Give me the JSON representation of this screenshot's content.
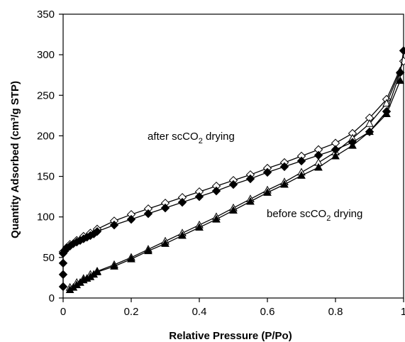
{
  "chart_data": {
    "type": "scatter",
    "title": "",
    "xlabel": "Relative Pressure (P/Po)",
    "ylabel": "Quantity Adsorbed (cm³/g STP)",
    "xlim": [
      0,
      1
    ],
    "ylim": [
      0,
      350
    ],
    "xticks": [
      "0",
      "0.2",
      "0.4",
      "0.6",
      "0.8",
      "1"
    ],
    "yticks": [
      "0",
      "50",
      "100",
      "150",
      "200",
      "250",
      "300",
      "350"
    ],
    "grid": false,
    "legend": "none",
    "annotations": [
      {
        "prefix": "after scCO",
        "sub": "2",
        "suffix": " drying"
      },
      {
        "prefix": "before scCO",
        "sub": "2",
        "suffix": " drying"
      }
    ],
    "series": [
      {
        "label": "after scCO2 drying, adsorption",
        "marker": "filled-diamond",
        "x": [
          0.0,
          0.0,
          0.0,
          0.0,
          0.005,
          0.01,
          0.02,
          0.03,
          0.04,
          0.05,
          0.06,
          0.07,
          0.08,
          0.09,
          0.1,
          0.15,
          0.2,
          0.25,
          0.3,
          0.35,
          0.4,
          0.45,
          0.5,
          0.55,
          0.6,
          0.65,
          0.7,
          0.75,
          0.8,
          0.85,
          0.9,
          0.95,
          0.99,
          1.0
        ],
        "y": [
          14,
          29,
          43,
          55,
          58,
          61,
          64,
          67,
          69,
          71,
          73,
          75,
          77,
          79,
          82,
          90,
          97,
          104,
          111,
          118,
          125,
          132,
          140,
          147,
          155,
          162,
          169,
          176,
          183,
          192,
          205,
          230,
          278,
          305
        ]
      },
      {
        "label": "after scCO2 drying, desorption",
        "marker": "open-diamond",
        "x": [
          1.0,
          0.95,
          0.9,
          0.85,
          0.8,
          0.75,
          0.7,
          0.65,
          0.6,
          0.55,
          0.5,
          0.45,
          0.4,
          0.35,
          0.3,
          0.25,
          0.2,
          0.15,
          0.1,
          0.08,
          0.06,
          0.04,
          0.02,
          0.01,
          0.0
        ],
        "y": [
          292,
          245,
          222,
          203,
          191,
          183,
          175,
          167,
          160,
          152,
          145,
          138,
          131,
          124,
          117,
          110,
          103,
          95,
          85,
          80,
          76,
          71,
          66,
          62,
          57
        ]
      },
      {
        "label": "before scCO2 drying, adsorption",
        "marker": "filled-triangle",
        "x": [
          0.02,
          0.03,
          0.04,
          0.05,
          0.06,
          0.07,
          0.08,
          0.09,
          0.1,
          0.15,
          0.2,
          0.25,
          0.3,
          0.35,
          0.4,
          0.45,
          0.5,
          0.55,
          0.6,
          0.65,
          0.7,
          0.75,
          0.8,
          0.85,
          0.9,
          0.95,
          0.99
        ],
        "y": [
          10,
          13,
          16,
          19,
          22,
          24,
          26,
          29,
          32,
          39,
          48,
          58,
          67,
          77,
          87,
          97,
          108,
          119,
          130,
          140,
          151,
          161,
          175,
          188,
          205,
          227,
          268
        ]
      },
      {
        "label": "before scCO2 drying, desorption",
        "marker": "open-triangle",
        "x": [
          0.99,
          0.95,
          0.9,
          0.85,
          0.8,
          0.75,
          0.7,
          0.65,
          0.6,
          0.55,
          0.5,
          0.45,
          0.4,
          0.35,
          0.3,
          0.25,
          0.2,
          0.15,
          0.1,
          0.08,
          0.06,
          0.04,
          0.02
        ],
        "y": [
          280,
          240,
          215,
          197,
          180,
          167,
          155,
          143,
          133,
          122,
          111,
          100,
          90,
          80,
          70,
          60,
          50,
          41,
          33,
          29,
          24,
          19,
          13
        ]
      }
    ]
  }
}
